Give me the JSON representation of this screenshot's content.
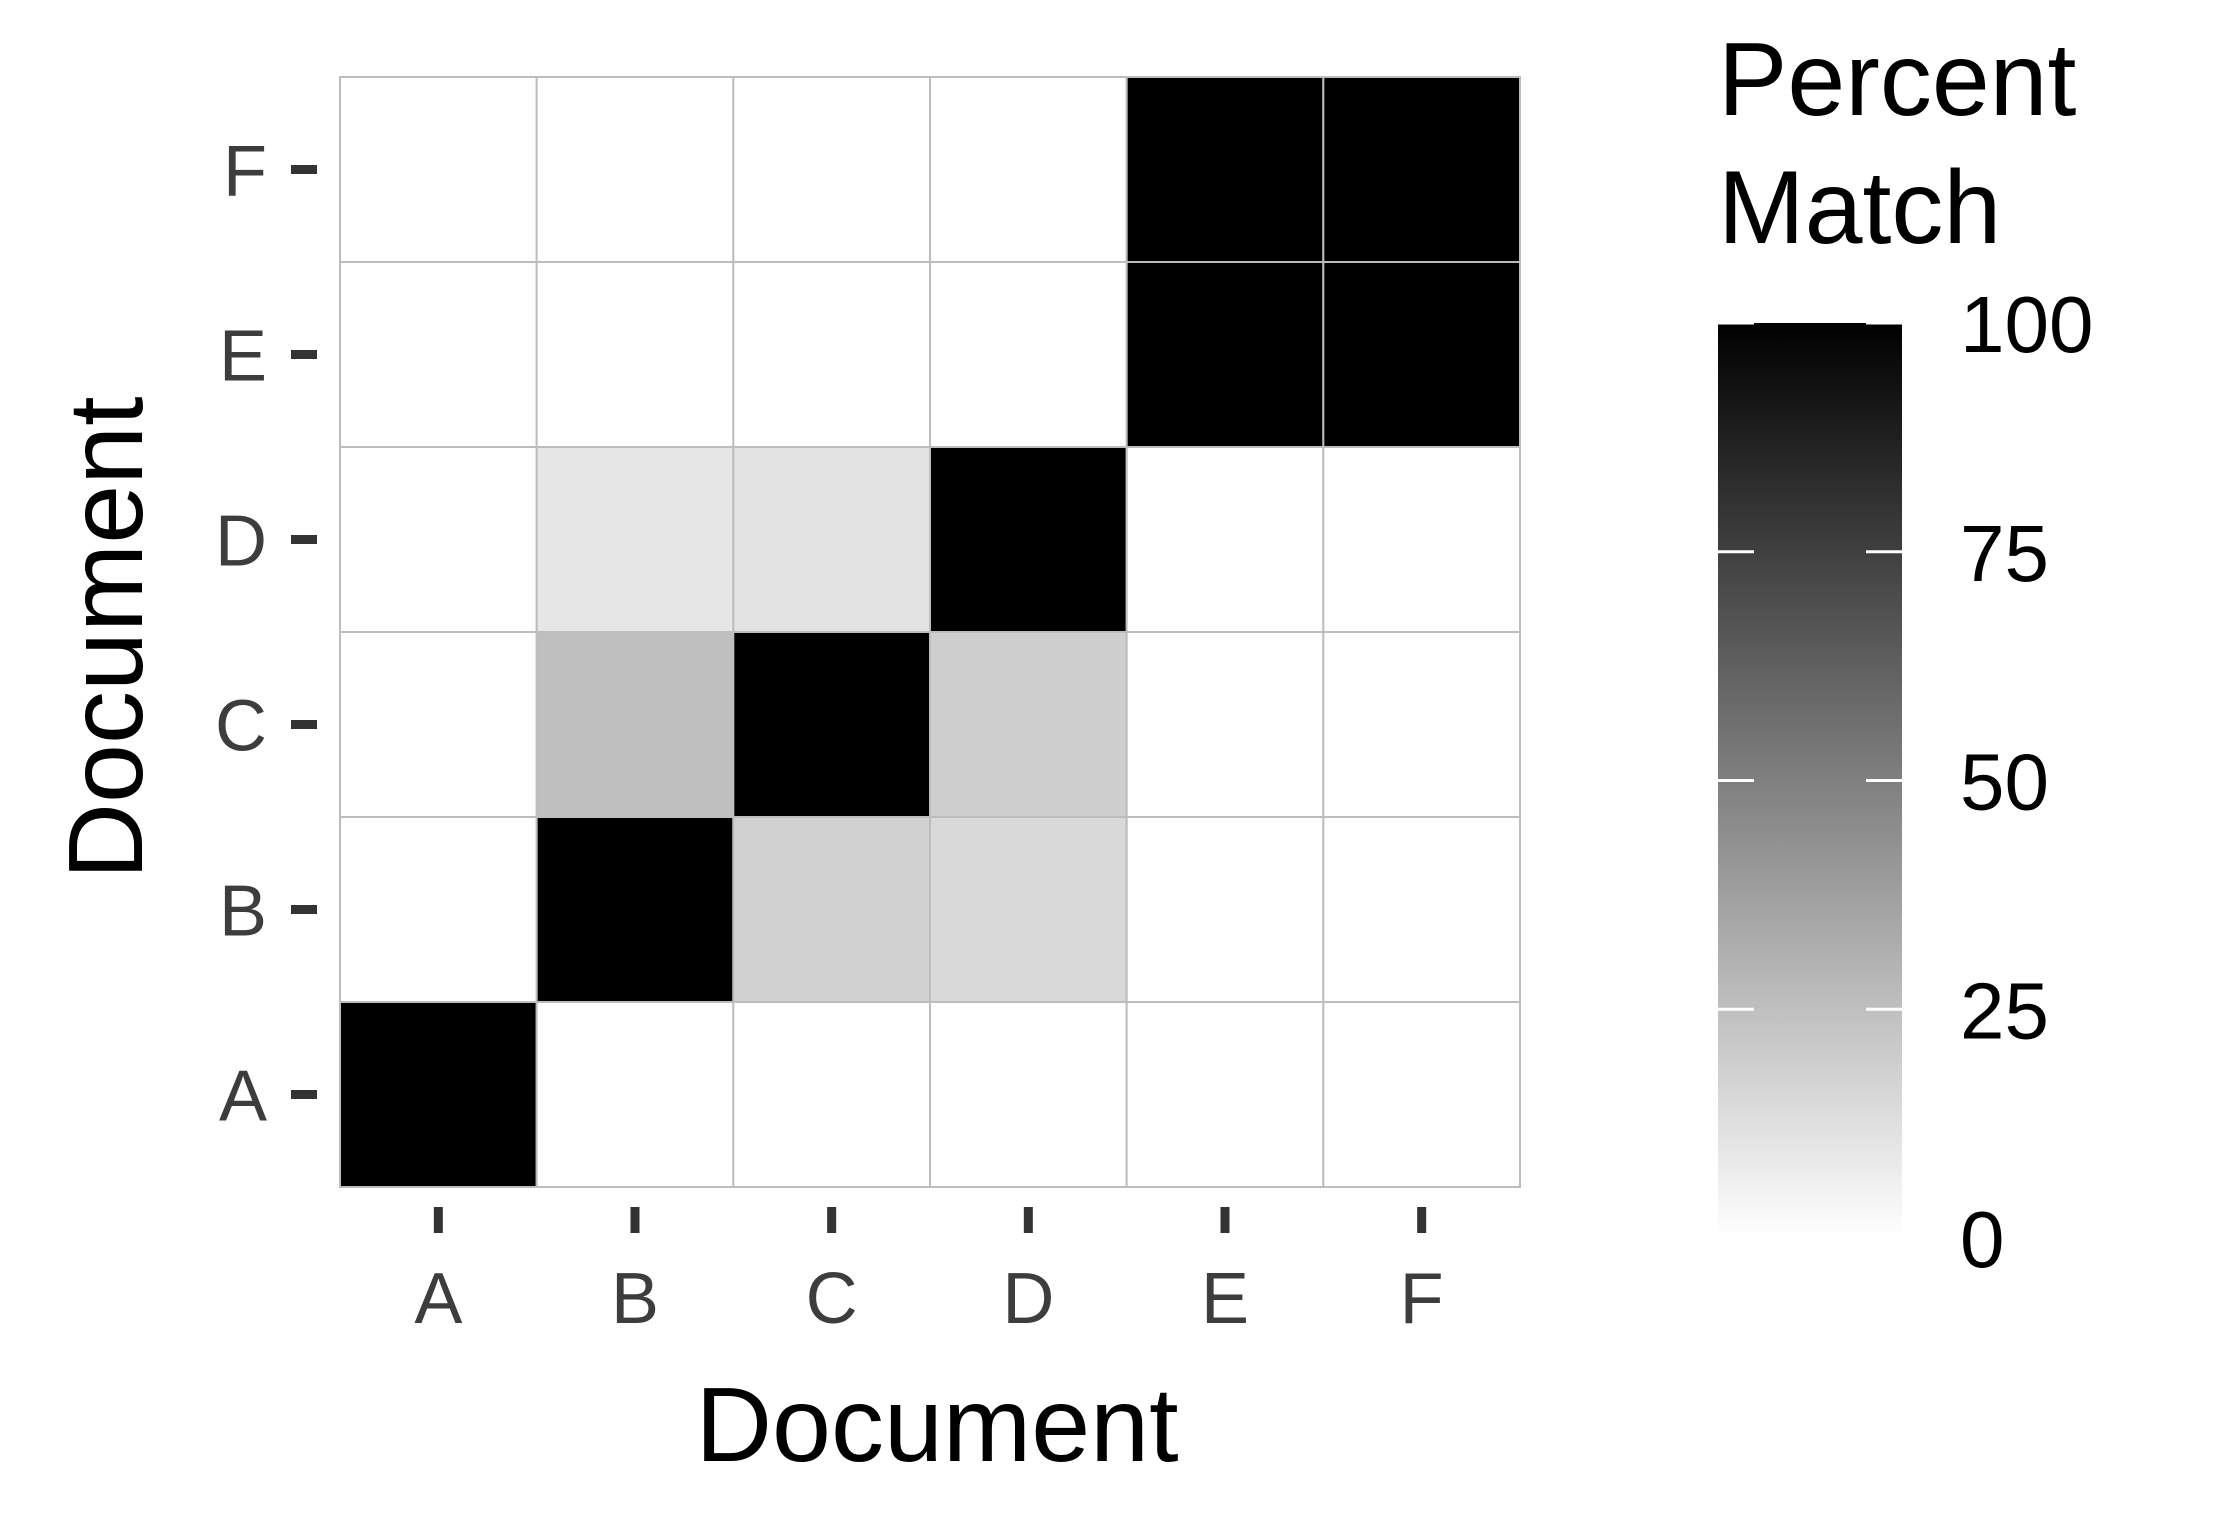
{
  "chart_data": {
    "type": "heatmap",
    "xlabel": "Document",
    "ylabel": "Document",
    "x_categories": [
      "A",
      "B",
      "C",
      "D",
      "E",
      "F"
    ],
    "y_categories": [
      "A",
      "B",
      "C",
      "D",
      "E",
      "F"
    ],
    "values": [
      [
        100,
        0,
        0,
        0,
        0,
        0
      ],
      [
        0,
        100,
        18,
        15,
        0,
        0
      ],
      [
        0,
        25,
        100,
        19,
        0,
        0
      ],
      [
        0,
        10,
        11,
        100,
        0,
        0
      ],
      [
        0,
        0,
        0,
        0,
        100,
        100
      ],
      [
        0,
        0,
        0,
        0,
        100,
        100
      ]
    ],
    "legend": {
      "title_lines": [
        "Percent",
        "Match"
      ],
      "min": 0,
      "max": 100,
      "ticks": [
        0,
        25,
        50,
        75,
        100
      ],
      "tick_labels": [
        "0",
        "25",
        "50",
        "75",
        "100"
      ],
      "low_color": "#ffffff",
      "high_color": "#000000",
      "placement": "right"
    },
    "grid": true,
    "grid_color": "#bdbdbd",
    "tick_mark_color": "#333333"
  }
}
